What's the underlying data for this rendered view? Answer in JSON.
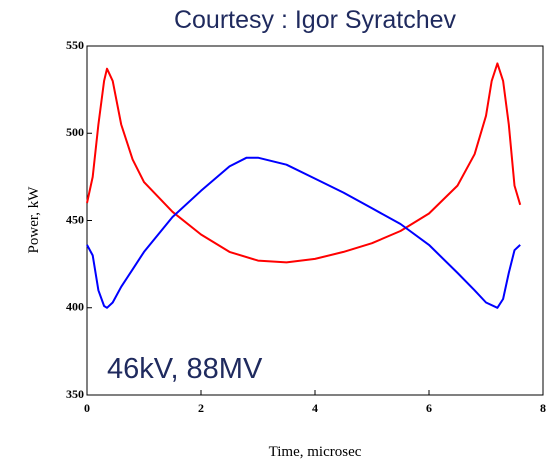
{
  "chart_data": {
    "type": "line",
    "title": "Courtesy : Igor Syratchev",
    "annotation": "46kV, 88MV",
    "x_label": "Time, microsec",
    "y_label": "Power, kW",
    "xlim": [
      0,
      8
    ],
    "xticks": [
      0,
      2,
      4,
      6,
      8
    ],
    "ylim": [
      350,
      550
    ],
    "yticks": [
      350,
      400,
      450,
      500,
      550
    ],
    "grid": false,
    "series": [
      {
        "color": "#ff0000",
        "x": [
          0,
          0.1,
          0.2,
          0.3,
          0.35,
          0.45,
          0.6,
          0.8,
          1.0,
          1.5,
          2,
          2.5,
          3,
          3.5,
          4,
          4.5,
          5,
          5.5,
          6,
          6.5,
          6.8,
          7.0,
          7.1,
          7.2,
          7.3,
          7.4,
          7.5,
          7.6
        ],
        "values": [
          460,
          475,
          505,
          530,
          537,
          530,
          505,
          485,
          472,
          455,
          442,
          432,
          427,
          426,
          428,
          432,
          437,
          444,
          454,
          470,
          488,
          510,
          530,
          540,
          530,
          505,
          470,
          459
        ]
      },
      {
        "color": "#0000ff",
        "x": [
          0,
          0.1,
          0.2,
          0.3,
          0.35,
          0.45,
          0.6,
          0.8,
          1.0,
          1.5,
          2,
          2.5,
          2.8,
          3,
          3.5,
          4,
          4.5,
          5,
          5.5,
          6,
          6.5,
          6.8,
          7.0,
          7.2,
          7.3,
          7.4,
          7.5,
          7.6
        ],
        "values": [
          436,
          430,
          410,
          401,
          400,
          403,
          412,
          422,
          432,
          452,
          467,
          481,
          486,
          486,
          482,
          474,
          466,
          457,
          448,
          436,
          420,
          410,
          403,
          400,
          405,
          420,
          433,
          436
        ]
      }
    ]
  }
}
